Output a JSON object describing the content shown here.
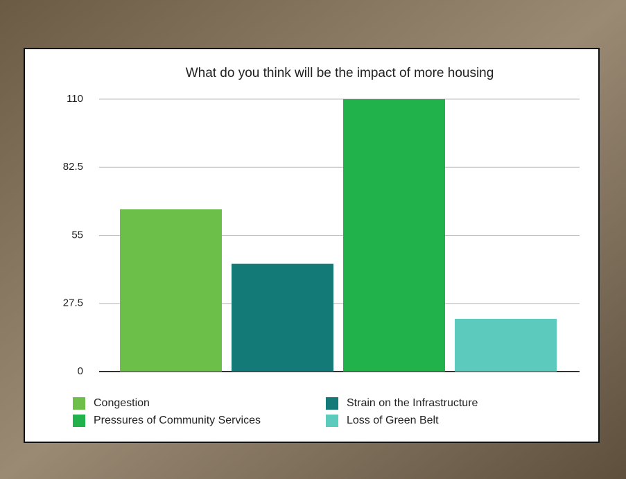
{
  "chart_data": {
    "type": "bar",
    "title": "What do you think will be the impact of more housing",
    "series": [
      {
        "name": "Congestion",
        "color": "#6cc04a",
        "values": [
          65.5
        ]
      },
      {
        "name": "Strain on the Infrastructure",
        "color": "#137a78",
        "values": [
          43.5
        ]
      },
      {
        "name": "Pressures of Community Services",
        "color": "#22b24c",
        "values": [
          110
        ]
      },
      {
        "name": "Loss of Green Belt",
        "color": "#5ccabd",
        "values": [
          21.3
        ]
      }
    ],
    "ylim": [
      0,
      110
    ],
    "yticks": [
      0,
      27.5,
      55,
      82.5,
      110
    ],
    "grid": true,
    "legend": "bottom"
  }
}
